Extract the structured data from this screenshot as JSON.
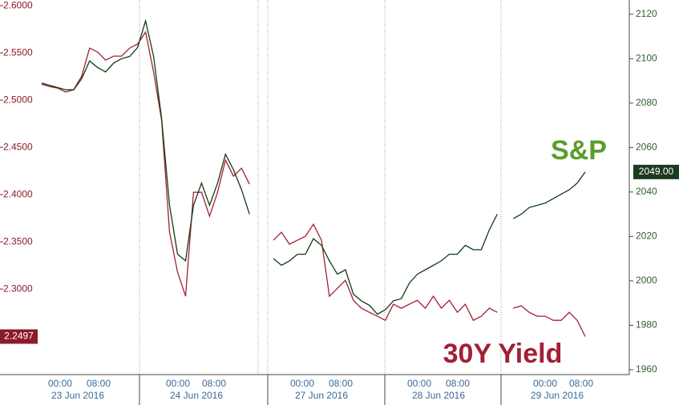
{
  "chart_data": {
    "type": "line",
    "series": [
      {
        "name": "30Y Yield",
        "color": "#a41e34",
        "axis": "y",
        "last_value_label": "2.2497",
        "values": [
          2.5169,
          2.5144,
          2.5127,
          2.5085,
          2.511,
          2.5254,
          2.5551,
          2.5508,
          2.5424,
          2.5466,
          2.5466,
          2.5551,
          2.5593,
          2.572,
          2.5297,
          2.4788,
          2.3602,
          2.3178,
          2.2924,
          2.4025,
          2.4025,
          2.3771,
          2.4025,
          2.4364,
          2.4195,
          2.428,
          2.411,
          null,
          null,
          2.3517,
          2.3602,
          2.3475,
          2.3517,
          2.3559,
          2.3686,
          2.3517,
          2.2924,
          2.3008,
          2.3093,
          2.2881,
          2.2797,
          2.2754,
          2.2712,
          2.2669,
          2.2839,
          2.2797,
          2.2839,
          2.2881,
          2.2797,
          2.2924,
          2.2797,
          2.2881,
          2.2754,
          2.2839,
          2.2669,
          2.2712,
          2.2797,
          2.2754,
          null,
          2.2797,
          2.2822,
          2.2754,
          2.2712,
          2.2712,
          2.2669,
          2.2669,
          2.2754,
          2.2669,
          2.2497
        ]
      },
      {
        "name": "S&P",
        "color": "#0f3d12",
        "axis": "y2",
        "last_value_label": "2049.00",
        "values": [
          2089,
          2088,
          2087,
          2086,
          2086,
          2091,
          2099,
          2096,
          2094,
          2098,
          2100,
          2101,
          2105,
          2117,
          2101,
          2073,
          2034,
          2012,
          2009,
          2034,
          2044,
          2034,
          2044,
          2057,
          2050,
          2041,
          2030,
          null,
          null,
          2010,
          2007,
          2009,
          2012,
          2012,
          2019,
          2016,
          2009,
          2003,
          2005,
          1994,
          1991,
          1989,
          1985,
          1987,
          1991,
          1992,
          1999,
          2003,
          2005,
          2007,
          2009,
          2012,
          2012,
          2016,
          2014,
          2014,
          2023,
          2030,
          null,
          2028,
          2030,
          2033,
          2034,
          2035,
          2037,
          2039,
          2041,
          2044,
          2049
        ]
      }
    ],
    "ylim": [
      2.212,
      2.606
    ],
    "yticks": [
      {
        "value": 2.3,
        "label": "2.3000"
      },
      {
        "value": 2.35,
        "label": "2.3500"
      },
      {
        "value": 2.4,
        "label": "2.4000"
      },
      {
        "value": 2.45,
        "label": "2.4500"
      },
      {
        "value": 2.5,
        "label": "2.5000"
      },
      {
        "value": 2.55,
        "label": "2.5500"
      },
      {
        "value": 2.6,
        "label": "2.6000"
      }
    ],
    "y2lim": [
      1958.9,
      2126.4
    ],
    "y2ticks": [
      1960,
      1980,
      2000,
      2020,
      2040,
      2060,
      2080,
      2100,
      2120
    ],
    "days": [
      {
        "date": "23 Jun 2016",
        "times": [
          "00:00",
          "08:00"
        ]
      },
      {
        "date": "24 Jun 2016",
        "times": [
          "00:00",
          "08:00"
        ]
      },
      {
        "date": "27 Jun 2016",
        "times": [
          "00:00",
          "08:00"
        ]
      },
      {
        "date": "28 Jun 2016",
        "times": [
          "00:00",
          "08:00"
        ]
      },
      {
        "date": "29 Jun 2016",
        "times": [
          "00:00",
          "08:00"
        ]
      }
    ]
  }
}
